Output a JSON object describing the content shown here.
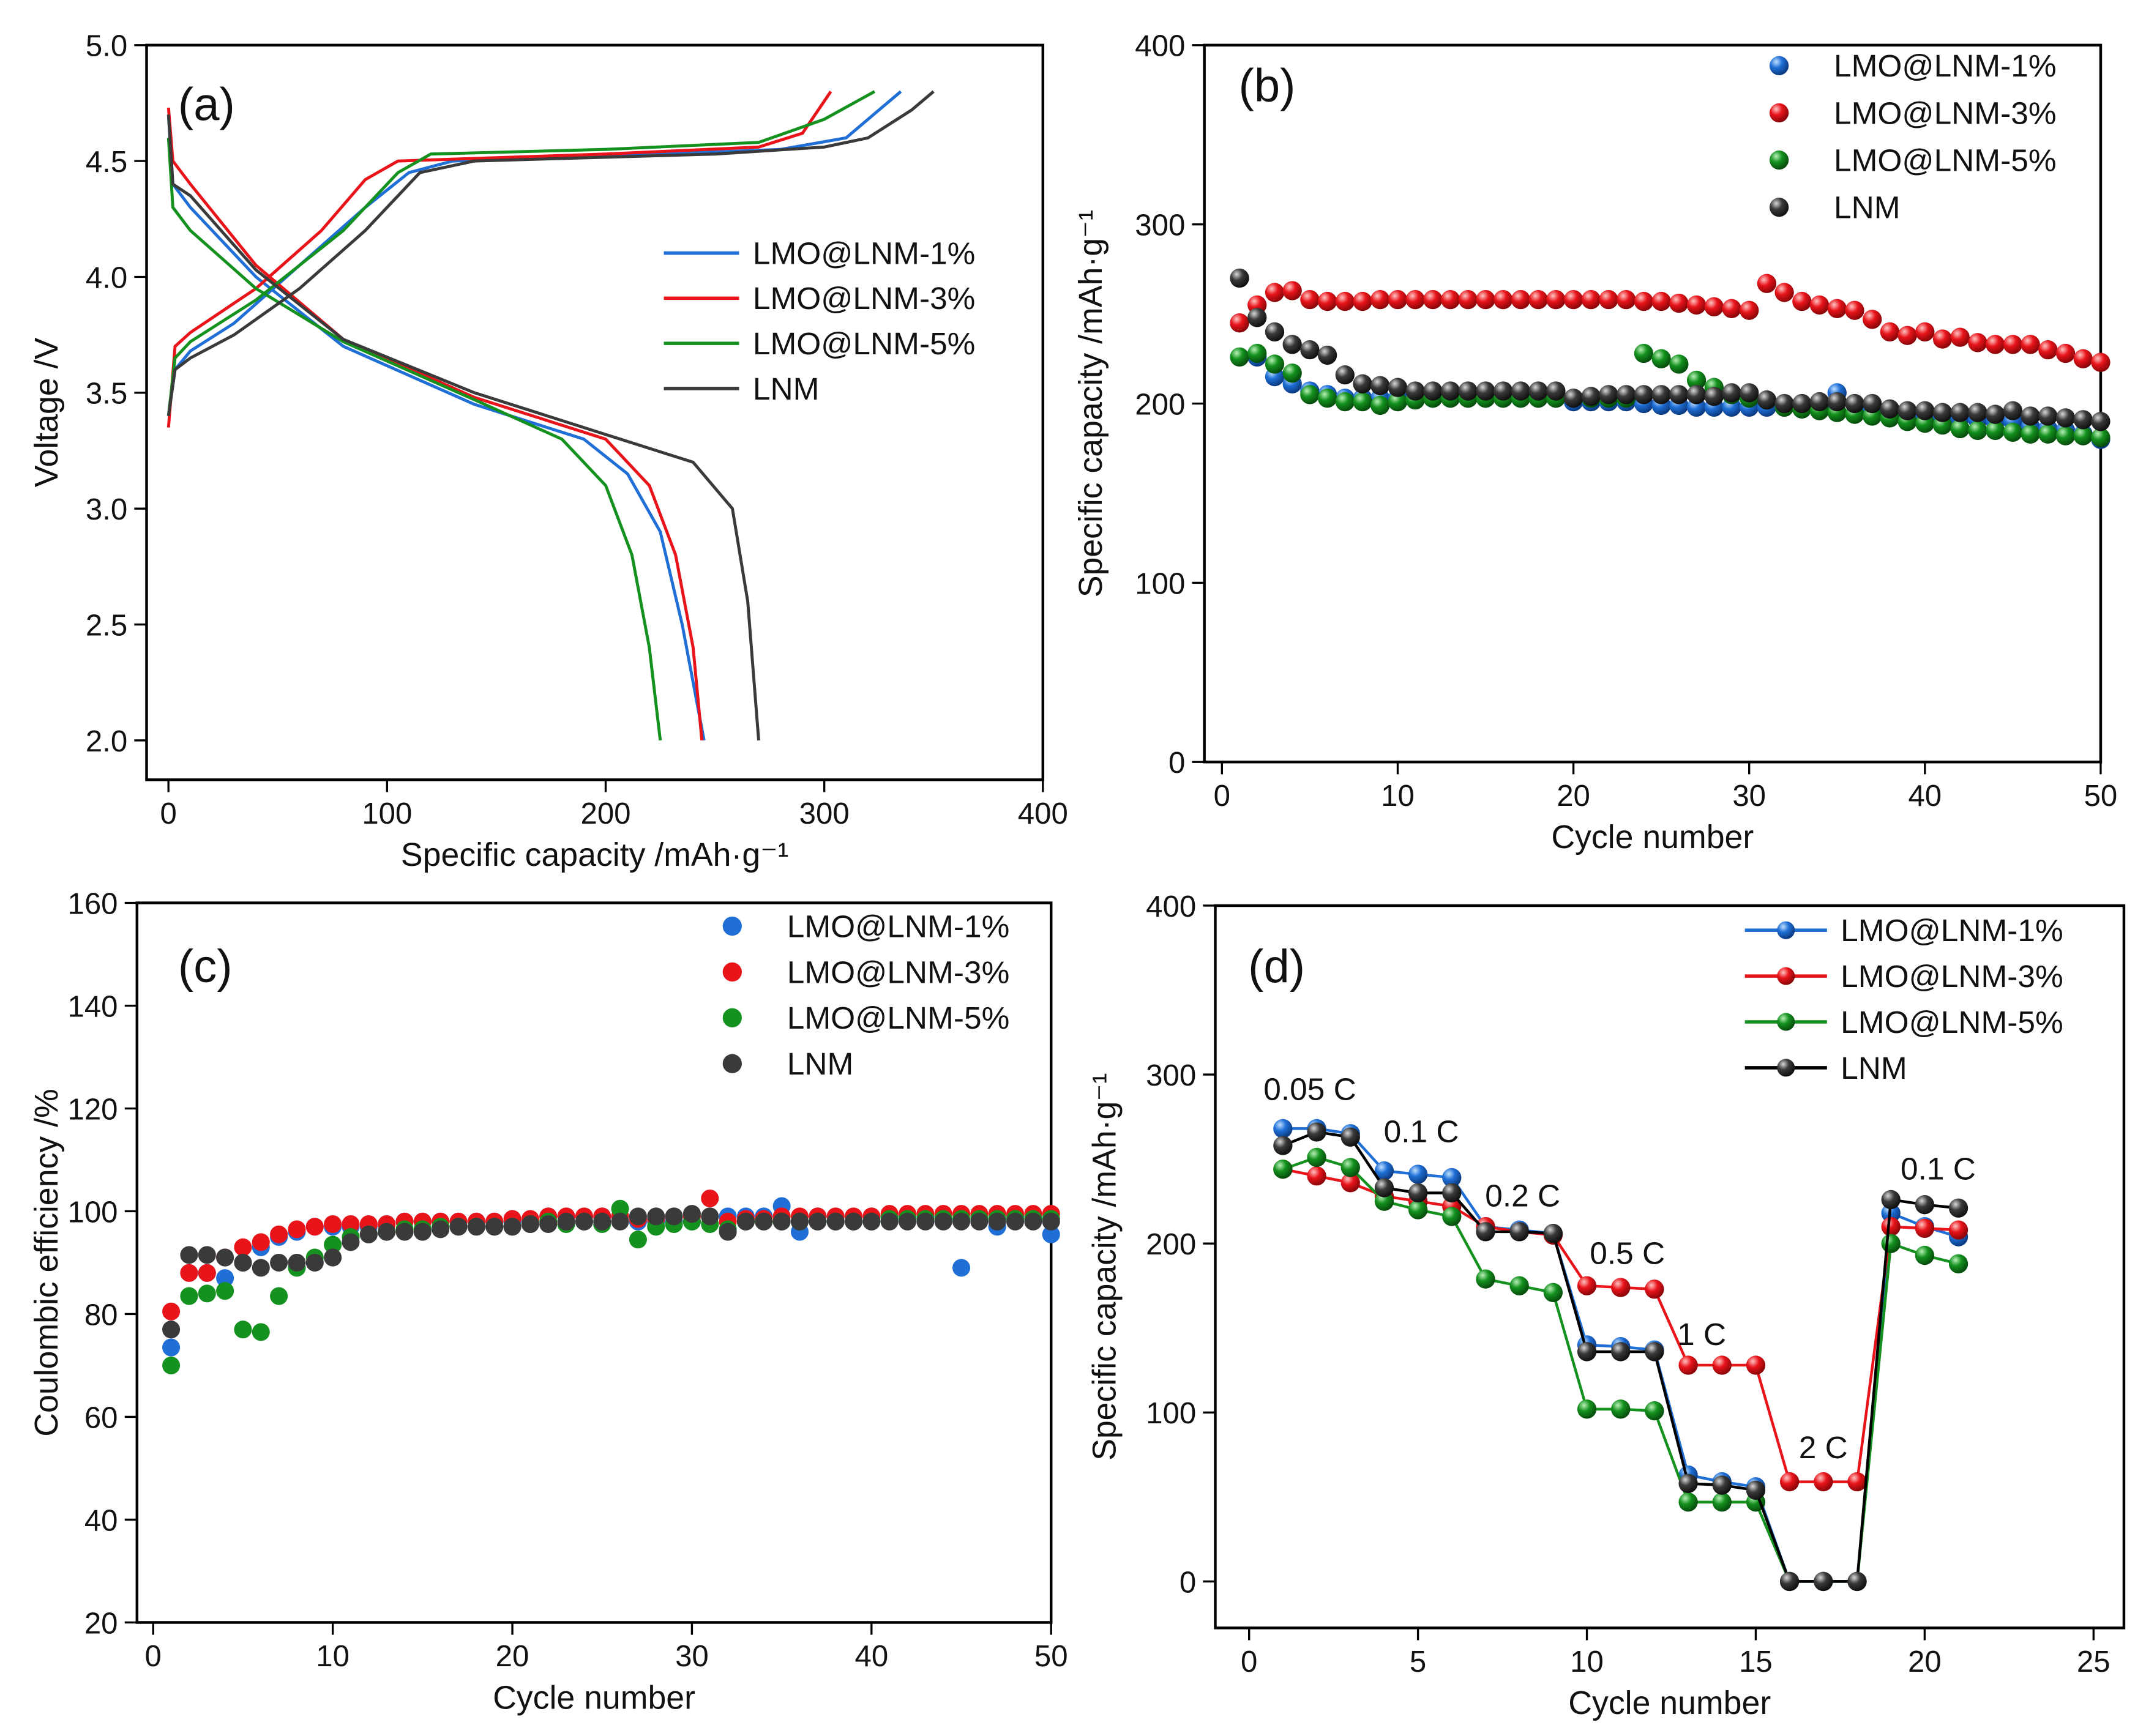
{
  "colors": {
    "LMO@LNM-1%": "#1f6fd6",
    "LMO@LNM-3%": "#e8141a",
    "LMO@LNM-5%": "#14911e",
    "LNM": "#3a3a3a"
  },
  "chart_data": [
    {
      "id": "a",
      "panel_label": "(a)",
      "type": "line",
      "xlabel": "Specific capacity /mAh·g⁻¹",
      "ylabel": "Voltage /V",
      "xlim": [
        -10,
        400
      ],
      "ylim": [
        1.83,
        5.0
      ],
      "xticks": [
        0,
        100,
        200,
        300,
        400
      ],
      "xtick_labels": [
        "0",
        "100",
        "200",
        "300",
        "400"
      ],
      "yticks": [
        2.0,
        2.5,
        3.0,
        3.5,
        4.0,
        4.5,
        5.0
      ],
      "ytick_labels": [
        "2.0",
        "2.5",
        "3.0",
        "3.5",
        "4.0",
        "4.5",
        "5.0"
      ],
      "legend": [
        "LMO@LNM-1%",
        "LMO@LNM-3%",
        "LMO@LNM-5%",
        "LNM"
      ],
      "legend_placement": "center-right",
      "series": [
        {
          "name": "LMO@LNM-1%",
          "charge": [
            [
              0,
              3.4
            ],
            [
              3,
              3.6
            ],
            [
              10,
              3.68
            ],
            [
              30,
              3.8
            ],
            [
              60,
              4.05
            ],
            [
              90,
              4.3
            ],
            [
              110,
              4.45
            ],
            [
              130,
              4.5
            ],
            [
              200,
              4.52
            ],
            [
              280,
              4.55
            ],
            [
              310,
              4.6
            ],
            [
              325,
              4.72
            ],
            [
              335,
              4.8
            ]
          ],
          "discharge": [
            [
              0,
              4.7
            ],
            [
              2,
              4.4
            ],
            [
              10,
              4.3
            ],
            [
              40,
              4.0
            ],
            [
              80,
              3.7
            ],
            [
              140,
              3.45
            ],
            [
              190,
              3.3
            ],
            [
              210,
              3.15
            ],
            [
              225,
              2.9
            ],
            [
              235,
              2.5
            ],
            [
              245,
              2.0
            ]
          ]
        },
        {
          "name": "LMO@LNM-3%",
          "charge": [
            [
              0,
              3.35
            ],
            [
              3,
              3.7
            ],
            [
              10,
              3.76
            ],
            [
              40,
              3.95
            ],
            [
              70,
              4.2
            ],
            [
              90,
              4.42
            ],
            [
              105,
              4.5
            ],
            [
              200,
              4.53
            ],
            [
              270,
              4.56
            ],
            [
              290,
              4.62
            ],
            [
              303,
              4.8
            ]
          ],
          "discharge": [
            [
              0,
              4.73
            ],
            [
              2,
              4.5
            ],
            [
              10,
              4.4
            ],
            [
              40,
              4.05
            ],
            [
              80,
              3.73
            ],
            [
              140,
              3.48
            ],
            [
              200,
              3.3
            ],
            [
              220,
              3.1
            ],
            [
              232,
              2.8
            ],
            [
              240,
              2.4
            ],
            [
              244,
              2.0
            ]
          ]
        },
        {
          "name": "LMO@LNM-5%",
          "charge": [
            [
              0,
              3.4
            ],
            [
              3,
              3.65
            ],
            [
              10,
              3.72
            ],
            [
              40,
              3.9
            ],
            [
              80,
              4.2
            ],
            [
              105,
              4.45
            ],
            [
              120,
              4.53
            ],
            [
              200,
              4.55
            ],
            [
              270,
              4.58
            ],
            [
              300,
              4.68
            ],
            [
              323,
              4.8
            ]
          ],
          "discharge": [
            [
              0,
              4.6
            ],
            [
              2,
              4.3
            ],
            [
              10,
              4.2
            ],
            [
              40,
              3.95
            ],
            [
              80,
              3.72
            ],
            [
              140,
              3.47
            ],
            [
              180,
              3.3
            ],
            [
              200,
              3.1
            ],
            [
              212,
              2.8
            ],
            [
              220,
              2.4
            ],
            [
              225,
              2.0
            ]
          ]
        },
        {
          "name": "LNM",
          "charge": [
            [
              0,
              3.4
            ],
            [
              3,
              3.6
            ],
            [
              10,
              3.65
            ],
            [
              30,
              3.75
            ],
            [
              60,
              3.95
            ],
            [
              90,
              4.2
            ],
            [
              115,
              4.45
            ],
            [
              140,
              4.5
            ],
            [
              250,
              4.53
            ],
            [
              300,
              4.56
            ],
            [
              320,
              4.6
            ],
            [
              340,
              4.72
            ],
            [
              350,
              4.8
            ]
          ],
          "discharge": [
            [
              0,
              4.7
            ],
            [
              2,
              4.4
            ],
            [
              10,
              4.35
            ],
            [
              40,
              4.03
            ],
            [
              80,
              3.73
            ],
            [
              140,
              3.5
            ],
            [
              200,
              3.32
            ],
            [
              240,
              3.2
            ],
            [
              258,
              3.0
            ],
            [
              265,
              2.6
            ],
            [
              270,
              2.0
            ]
          ]
        }
      ]
    },
    {
      "id": "b",
      "panel_label": "(b)",
      "type": "scatter",
      "xlabel": "Cycle number",
      "ylabel": "Specific capacity /mAh·g⁻¹",
      "xlim": [
        -1,
        50
      ],
      "ylim": [
        0,
        400
      ],
      "xticks": [
        0,
        10,
        20,
        30,
        40,
        50
      ],
      "xtick_labels": [
        "0",
        "10",
        "20",
        "30",
        "40",
        "50"
      ],
      "yticks": [
        0,
        100,
        200,
        300,
        400
      ],
      "ytick_labels": [
        "0",
        "100",
        "200",
        "300",
        "400"
      ],
      "legend": [
        "LMO@LNM-1%",
        "LMO@LNM-3%",
        "LMO@LNM-5%",
        "LNM"
      ],
      "legend_placement": "top-right",
      "series": [
        {
          "name": "LMO@LNM-1%",
          "values": [
            245,
            226,
            215,
            211,
            207,
            205,
            203,
            203,
            203,
            203,
            203,
            203,
            203,
            203,
            203,
            203,
            203,
            203,
            203,
            201,
            201,
            201,
            201,
            200,
            199,
            199,
            198,
            198,
            198,
            198,
            198,
            198,
            197,
            198,
            206,
            200,
            197,
            194,
            194,
            193,
            193,
            192,
            191,
            190,
            190,
            187,
            186,
            185,
            183,
            180
          ]
        },
        {
          "name": "LMO@LNM-3%",
          "values": [
            245,
            255,
            262,
            263,
            258,
            257,
            257,
            257,
            258,
            258,
            258,
            258,
            258,
            258,
            258,
            258,
            258,
            258,
            258,
            258,
            258,
            258,
            258,
            257,
            257,
            256,
            255,
            254,
            253,
            252,
            267,
            262,
            257,
            255,
            253,
            252,
            247,
            240,
            238,
            240,
            236,
            237,
            234,
            233,
            233,
            233,
            230,
            228,
            225,
            223
          ]
        },
        {
          "name": "LMO@LNM-5%",
          "values": [
            226,
            228,
            222,
            217,
            205,
            203,
            201,
            201,
            199,
            201,
            202,
            203,
            203,
            203,
            203,
            203,
            203,
            203,
            203,
            203,
            203,
            203,
            203,
            228,
            225,
            222,
            213,
            209,
            205,
            203,
            202,
            198,
            197,
            196,
            195,
            194,
            193,
            192,
            190,
            189,
            188,
            186,
            185,
            185,
            184,
            183,
            183,
            182,
            182,
            181
          ]
        },
        {
          "name": "LNM",
          "values": [
            270,
            248,
            240,
            233,
            230,
            227,
            216,
            211,
            210,
            209,
            207,
            207,
            207,
            207,
            207,
            207,
            207,
            207,
            207,
            203,
            204,
            205,
            205,
            205,
            205,
            205,
            205,
            204,
            206,
            206,
            202,
            200,
            200,
            201,
            201,
            200,
            200,
            197,
            196,
            196,
            195,
            195,
            195,
            194,
            196,
            193,
            193,
            192,
            191,
            190
          ]
        }
      ]
    },
    {
      "id": "c",
      "panel_label": "(c)",
      "type": "scatter",
      "xlabel": "Cycle number",
      "ylabel": "Coulombic efficiency /%",
      "xlim": [
        -0.9,
        50
      ],
      "ylim": [
        20,
        160
      ],
      "xticks": [
        0,
        10,
        20,
        30,
        40,
        50
      ],
      "xtick_labels": [
        "0",
        "10",
        "20",
        "30",
        "40",
        "50"
      ],
      "yticks": [
        20,
        40,
        60,
        80,
        100,
        120,
        140,
        160
      ],
      "ytick_labels": [
        "20",
        "40",
        "60",
        "80",
        "100",
        "120",
        "140",
        "160"
      ],
      "legend": [
        "LMO@LNM-1%",
        "LMO@LNM-3%",
        "LMO@LNM-5%",
        "LNM"
      ],
      "legend_placement": "top-right",
      "series": [
        {
          "name": "LMO@LNM-1%",
          "values": [
            73.5,
            88,
            88,
            87,
            90,
            93,
            95,
            96,
            97,
            97,
            97,
            97,
            97.5,
            98,
            98,
            98,
            98,
            98,
            98,
            98,
            98,
            99,
            99,
            99,
            99,
            99,
            98,
            98,
            98,
            98,
            99,
            99,
            99,
            99,
            101,
            96,
            99,
            99,
            99,
            99,
            99,
            99,
            99,
            99,
            89,
            99,
            97,
            99,
            99,
            95.5
          ]
        },
        {
          "name": "LMO@LNM-3%",
          "values": [
            80.5,
            88,
            88,
            91,
            93,
            94,
            95.5,
            96.5,
            97,
            97.5,
            97.5,
            97.5,
            97.5,
            98,
            98,
            98,
            98,
            98,
            98,
            98.5,
            98.5,
            99,
            99,
            99,
            99,
            99,
            98.5,
            98.5,
            99,
            99,
            102.5,
            98,
            98.5,
            98.5,
            99,
            99,
            99,
            99,
            99,
            99,
            99.5,
            99.5,
            99.5,
            99.5,
            99.5,
            99.5,
            99.5,
            99.5,
            99.5,
            99.5
          ]
        },
        {
          "name": "LMO@LNM-5%",
          "values": [
            70,
            83.5,
            84,
            84.5,
            77,
            76.5,
            83.5,
            89,
            91,
            93.5,
            95,
            95.5,
            96,
            96.5,
            96.5,
            97,
            97,
            97,
            97,
            97,
            97.5,
            98,
            97.5,
            98,
            97.5,
            100.5,
            94.5,
            97,
            97.5,
            98,
            97.5,
            96.5,
            98,
            98,
            98,
            98,
            98,
            98,
            98,
            98,
            98.5,
            98.5,
            98.5,
            98.5,
            98.5,
            98.5,
            98.5,
            98.5,
            98.5,
            98.5
          ]
        },
        {
          "name": "LNM",
          "values": [
            77,
            91.5,
            91.5,
            91,
            90,
            89,
            90,
            90,
            90,
            91,
            94,
            95.5,
            96,
            96,
            96,
            96.5,
            97,
            97,
            97,
            97,
            97.5,
            97.5,
            98,
            98,
            98,
            98,
            99,
            99,
            99,
            99.5,
            99,
            96,
            98,
            98,
            98,
            98,
            98,
            98,
            98,
            98,
            98,
            98,
            98,
            98,
            98,
            98,
            98,
            98,
            98,
            98
          ]
        }
      ]
    },
    {
      "id": "d",
      "panel_label": "(d)",
      "type": "line",
      "xlabel": "Cycle number",
      "ylabel": "Specific capacity /mAh·g⁻¹",
      "xlim": [
        -1,
        25.9
      ],
      "ylim": [
        -27.5,
        400
      ],
      "xticks": [
        0,
        5,
        10,
        15,
        20,
        25
      ],
      "xtick_labels": [
        "0",
        "5",
        "10",
        "15",
        "20",
        "25"
      ],
      "yticks": [
        0,
        100,
        200,
        300,
        400
      ],
      "ytick_labels": [
        "0",
        "100",
        "200",
        "300",
        "400"
      ],
      "legend": [
        "LMO@LNM-1%",
        "LMO@LNM-3%",
        "LMO@LNM-5%",
        "LNM"
      ],
      "legend_placement": "top-right",
      "annotations": [
        {
          "text": "0.05 C",
          "x": 1.8,
          "y": 285
        },
        {
          "text": "0.1 C",
          "x": 5.1,
          "y": 260
        },
        {
          "text": "0.2 C",
          "x": 8.1,
          "y": 222
        },
        {
          "text": "0.5 C",
          "x": 11.2,
          "y": 188
        },
        {
          "text": "1 C",
          "x": 13.4,
          "y": 140
        },
        {
          "text": "2 C",
          "x": 17.0,
          "y": 73
        },
        {
          "text": "0.1 C",
          "x": 20.4,
          "y": 238
        }
      ],
      "series": [
        {
          "name": "LMO@LNM-1%",
          "values": [
            268,
            268,
            265,
            243,
            241,
            239,
            210,
            208,
            206,
            140,
            139,
            137,
            63,
            59,
            56,
            0,
            0,
            0,
            218,
            210,
            204
          ]
        },
        {
          "name": "LMO@LNM-3%",
          "values": [
            244,
            240,
            236,
            228,
            225,
            222,
            210,
            207,
            205,
            175,
            174,
            173,
            128,
            128,
            128,
            59,
            59,
            59,
            210,
            209,
            208
          ]
        },
        {
          "name": "LMO@LNM-5%",
          "values": [
            244,
            251,
            245,
            225,
            220,
            216,
            179,
            175,
            171,
            102,
            102,
            101,
            47,
            47,
            47,
            0,
            0,
            0,
            200,
            193,
            188
          ]
        },
        {
          "name": "LNM",
          "values": [
            258,
            266,
            263,
            233,
            230,
            230,
            207,
            207,
            206,
            136,
            136,
            136,
            58,
            57,
            54,
            0,
            0,
            0,
            226,
            223,
            221
          ]
        }
      ]
    }
  ]
}
